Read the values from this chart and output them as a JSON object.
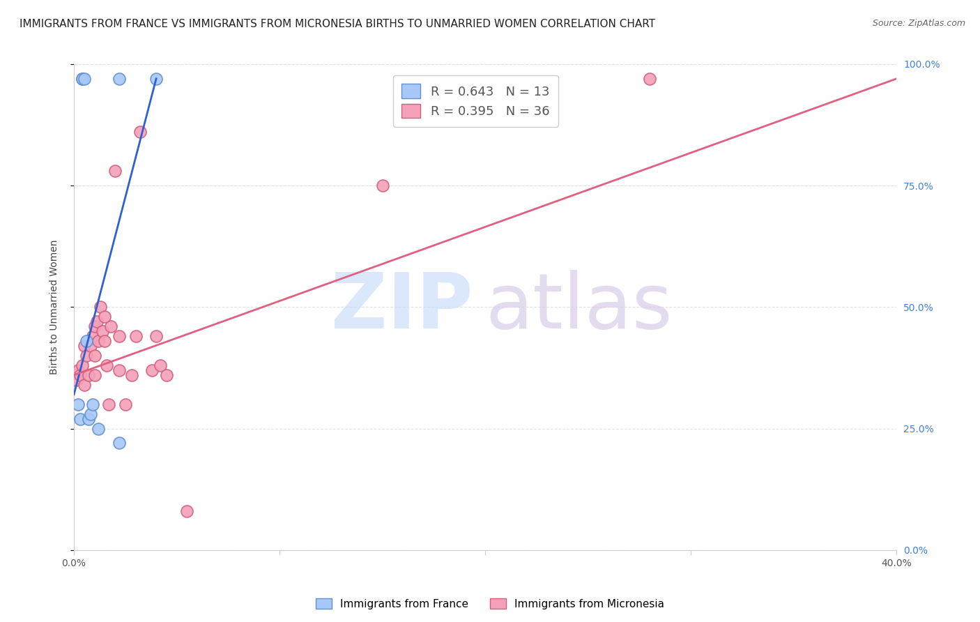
{
  "title": "IMMIGRANTS FROM FRANCE VS IMMIGRANTS FROM MICRONESIA BIRTHS TO UNMARRIED WOMEN CORRELATION CHART",
  "source": "Source: ZipAtlas.com",
  "ylabel": "Births to Unmarried Women",
  "france_R": 0.643,
  "france_N": 13,
  "micronesia_R": 0.395,
  "micronesia_N": 36,
  "france_color": "#a8c8f8",
  "micronesia_color": "#f4a0b8",
  "france_line_color": "#3060d0",
  "micronesia_line_color": "#e06080",
  "watermark_zip_color": "#ccddf8",
  "watermark_atlas_color": "#d8cce8",
  "france_scatter_x": [
    0.002,
    0.003,
    0.004,
    0.004,
    0.005,
    0.006,
    0.007,
    0.008,
    0.009,
    0.012,
    0.022,
    0.022,
    0.04
  ],
  "france_scatter_y": [
    0.3,
    0.27,
    0.97,
    0.97,
    0.97,
    0.43,
    0.27,
    0.28,
    0.3,
    0.25,
    0.22,
    0.97,
    0.97
  ],
  "micronesia_scatter_x": [
    0.001,
    0.002,
    0.003,
    0.004,
    0.005,
    0.005,
    0.006,
    0.007,
    0.008,
    0.009,
    0.01,
    0.01,
    0.011,
    0.012,
    0.013,
    0.014,
    0.015,
    0.016,
    0.017,
    0.018,
    0.02,
    0.022,
    0.025,
    0.028,
    0.03,
    0.032,
    0.038,
    0.04,
    0.042,
    0.045,
    0.055,
    0.15,
    0.28,
    0.01,
    0.015,
    0.022
  ],
  "micronesia_scatter_y": [
    0.35,
    0.37,
    0.36,
    0.38,
    0.34,
    0.42,
    0.4,
    0.36,
    0.42,
    0.44,
    0.46,
    0.36,
    0.47,
    0.43,
    0.5,
    0.45,
    0.43,
    0.38,
    0.3,
    0.46,
    0.78,
    0.37,
    0.3,
    0.36,
    0.44,
    0.86,
    0.37,
    0.44,
    0.38,
    0.36,
    0.08,
    0.75,
    0.97,
    0.4,
    0.48,
    0.44
  ],
  "france_line_x0": 0.0,
  "france_line_x1": 0.04,
  "france_line_y0": 0.32,
  "france_line_y1": 0.97,
  "micronesia_line_x0": 0.0,
  "micronesia_line_x1": 0.4,
  "micronesia_line_y0": 0.36,
  "micronesia_line_y1": 0.97,
  "xlim": [
    0.0,
    0.4
  ],
  "ylim": [
    0.0,
    1.0
  ],
  "xtick_vals": [
    0.0,
    0.1,
    0.2,
    0.3,
    0.4
  ],
  "xtick_labels": [
    "0.0%",
    "",
    "",
    "",
    "40.0%"
  ],
  "ytick_vals": [
    0.0,
    0.25,
    0.5,
    0.75,
    1.0
  ],
  "ytick_labels": [
    "0.0%",
    "25.0%",
    "50.0%",
    "75.0%",
    "100.0%"
  ],
  "background_color": "#ffffff",
  "grid_color": "#e0e0e0",
  "title_fontsize": 11,
  "axis_label_fontsize": 10,
  "tick_fontsize": 10,
  "legend_fontsize": 13,
  "source_fontsize": 9,
  "right_tick_color": "#4080e0"
}
